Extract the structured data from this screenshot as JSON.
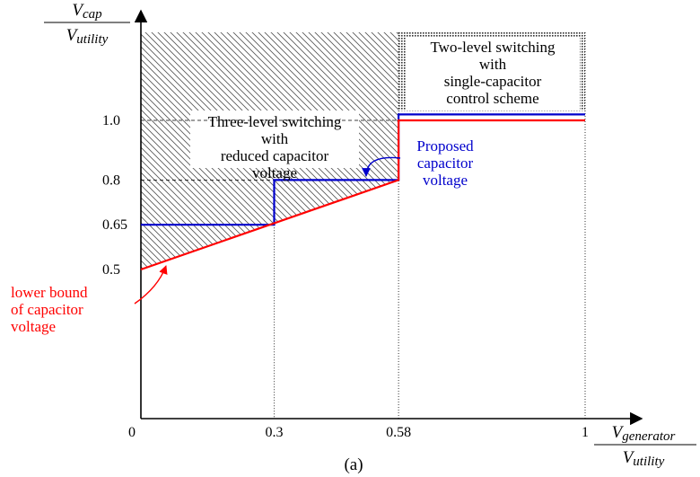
{
  "chart_data": {
    "type": "line",
    "x_axis": {
      "label_numerator": "V",
      "label_numerator_sub": "generator",
      "label_denominator": "V",
      "label_denominator_sub": "utility",
      "ticks": [
        {
          "value": 0,
          "label": "0"
        },
        {
          "value": 0.3,
          "label": "0.3"
        },
        {
          "value": 0.58,
          "label": "0.58"
        },
        {
          "value": 1,
          "label": "1"
        }
      ],
      "range": [
        0,
        1.2
      ]
    },
    "y_axis": {
      "label_numerator": "V",
      "label_numerator_sub": "cap",
      "label_denominator": "V",
      "label_denominator_sub": "utility",
      "ticks": [
        {
          "value": 0.5,
          "label": "0.5"
        },
        {
          "value": 0.65,
          "label": "0.65"
        },
        {
          "value": 0.8,
          "label": "0.8"
        },
        {
          "value": 1.0,
          "label": "1.0"
        }
      ],
      "range": [
        0,
        1.3
      ]
    },
    "series": [
      {
        "name": "Proposed capacitor voltage",
        "color": "#0000cc",
        "points": [
          [
            0,
            0.65
          ],
          [
            0.3,
            0.65
          ],
          [
            0.3,
            0.8
          ],
          [
            0.58,
            0.8
          ],
          [
            0.58,
            1.02
          ],
          [
            1,
            1.02
          ]
        ]
      },
      {
        "name": "lower bound of capacitor voltage",
        "color": "#ff0000",
        "points": [
          [
            0,
            0.5
          ],
          [
            0.58,
            0.8
          ],
          [
            0.58,
            1.0
          ],
          [
            1,
            1.0
          ]
        ]
      }
    ],
    "regions": [
      {
        "label_lines": [
          "Three-level switching",
          "with",
          "reduced capacitor",
          "voltage"
        ],
        "pattern": "diagonal-hatch",
        "x": [
          0,
          0.58
        ]
      },
      {
        "label_lines": [
          "Two-level switching",
          "with",
          "single-capacitor",
          "control scheme"
        ],
        "pattern": "dots",
        "x": [
          0.58,
          1
        ]
      }
    ],
    "annotations": [
      {
        "label_lines": [
          "Proposed",
          "capacitor",
          "voltage"
        ],
        "color": "#0000cc"
      },
      {
        "label_lines": [
          "lower bound",
          "of capacitor",
          "voltage"
        ],
        "color": "#ff0000"
      }
    ],
    "caption": "(a)"
  }
}
